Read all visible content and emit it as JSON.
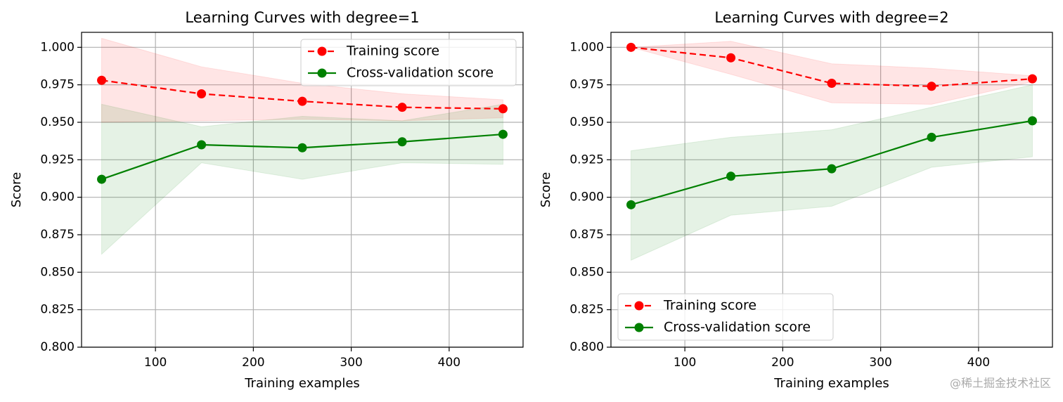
{
  "chart_data": [
    {
      "type": "line",
      "title": "Learning Curves with degree=1",
      "x_label": "Training examples",
      "y_label": "Score",
      "x": [
        45,
        147,
        250,
        352,
        455
      ],
      "series": [
        {
          "name": "Training score",
          "color": "red",
          "dashed": true,
          "values": [
            0.978,
            0.969,
            0.964,
            0.96,
            0.959
          ],
          "lower": [
            0.95,
            0.951,
            0.952,
            0.951,
            0.953
          ],
          "upper": [
            1.006,
            0.987,
            0.976,
            0.969,
            0.965
          ]
        },
        {
          "name": "Cross-validation score",
          "color": "green",
          "dashed": false,
          "values": [
            0.912,
            0.935,
            0.933,
            0.937,
            0.942
          ],
          "lower": [
            0.862,
            0.923,
            0.912,
            0.923,
            0.922
          ],
          "upper": [
            0.962,
            0.947,
            0.954,
            0.951,
            0.962
          ]
        }
      ],
      "xlim": [
        24.5,
        475.5
      ],
      "ylim": [
        0.8,
        1.01
      ],
      "xticks": [
        100,
        200,
        300,
        400
      ],
      "yticks": [
        {
          "value": 0.8,
          "label": "0.800"
        },
        {
          "value": 0.825,
          "label": "0.825"
        },
        {
          "value": 0.85,
          "label": "0.850"
        },
        {
          "value": 0.875,
          "label": "0.875"
        },
        {
          "value": 0.9,
          "label": "0.900"
        },
        {
          "value": 0.925,
          "label": "0.925"
        },
        {
          "value": 0.95,
          "label": "0.950"
        },
        {
          "value": 0.975,
          "label": "0.975"
        },
        {
          "value": 1.0,
          "label": "1.000"
        }
      ],
      "grid": true,
      "legend": "upper right"
    },
    {
      "type": "line",
      "title": "Learning Curves with degree=2",
      "x_label": "Training examples",
      "y_label": "Score",
      "x": [
        45,
        147,
        250,
        352,
        455
      ],
      "series": [
        {
          "name": "Training score",
          "color": "red",
          "dashed": true,
          "values": [
            1.0,
            0.993,
            0.976,
            0.974,
            0.979
          ],
          "lower": [
            1.0,
            0.982,
            0.963,
            0.962,
            0.977
          ],
          "upper": [
            1.0,
            1.004,
            0.989,
            0.986,
            0.981
          ]
        },
        {
          "name": "Cross-validation score",
          "color": "green",
          "dashed": false,
          "values": [
            0.895,
            0.914,
            0.919,
            0.94,
            0.951
          ],
          "lower": [
            0.858,
            0.888,
            0.894,
            0.92,
            0.927
          ],
          "upper": [
            0.931,
            0.94,
            0.945,
            0.96,
            0.975
          ]
        }
      ],
      "xlim": [
        24.5,
        475.5
      ],
      "ylim": [
        0.8,
        1.01
      ],
      "xticks": [
        100,
        200,
        300,
        400
      ],
      "yticks": [
        {
          "value": 0.8,
          "label": "0.800"
        },
        {
          "value": 0.825,
          "label": "0.825"
        },
        {
          "value": 0.85,
          "label": "0.850"
        },
        {
          "value": 0.875,
          "label": "0.875"
        },
        {
          "value": 0.9,
          "label": "0.900"
        },
        {
          "value": 0.925,
          "label": "0.925"
        },
        {
          "value": 0.95,
          "label": "0.950"
        },
        {
          "value": 0.975,
          "label": "0.975"
        },
        {
          "value": 1.0,
          "label": "1.000"
        }
      ],
      "grid": true,
      "legend": "lower left"
    }
  ],
  "watermark": "@稀土掘金技术社区"
}
